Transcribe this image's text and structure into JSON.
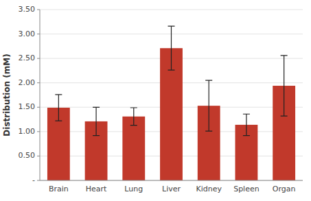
{
  "chart_data": {
    "type": "bar",
    "categories": [
      "Brain",
      "Heart",
      "Lung",
      "Liver",
      "Kidney",
      "Spleen",
      "Organ"
    ],
    "values": [
      1.49,
      1.21,
      1.31,
      2.71,
      1.53,
      1.14,
      1.94
    ],
    "errors": [
      0.27,
      0.29,
      0.18,
      0.45,
      0.52,
      0.22,
      0.62
    ],
    "color": "#C1392B",
    "ylabel": "Distribution (mM)",
    "ylim": [
      0,
      3.5
    ],
    "yticks": [
      {
        "value": 0.0,
        "label": "-"
      },
      {
        "value": 0.5,
        "label": "0.50"
      },
      {
        "value": 1.0,
        "label": "1.00"
      },
      {
        "value": 1.5,
        "label": "1.50"
      },
      {
        "value": 2.0,
        "label": "2.00"
      },
      {
        "value": 2.5,
        "label": "2.50"
      },
      {
        "value": 3.0,
        "label": "3.00"
      },
      {
        "value": 3.5,
        "label": "3.50"
      }
    ],
    "grid": true
  }
}
